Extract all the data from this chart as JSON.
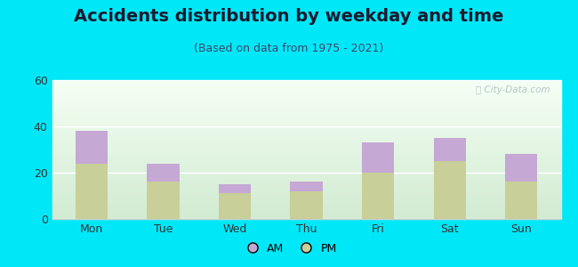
{
  "categories": [
    "Mon",
    "Tue",
    "Wed",
    "Thu",
    "Fri",
    "Sat",
    "Sun"
  ],
  "pm_values": [
    24,
    16,
    11,
    12,
    20,
    25,
    16
  ],
  "am_values": [
    14,
    8,
    4,
    4,
    13,
    10,
    12
  ],
  "am_color": "#c5a8d4",
  "pm_color": "#c8cf98",
  "title": "Accidents distribution by weekday and time",
  "subtitle": "(Based on data from 1975 - 2021)",
  "ylim": [
    0,
    60
  ],
  "yticks": [
    0,
    20,
    40,
    60
  ],
  "background_color": "#00e8f8",
  "watermark": "Ⓢ City-Data.com",
  "bar_width": 0.45,
  "title_fontsize": 14,
  "subtitle_fontsize": 9
}
